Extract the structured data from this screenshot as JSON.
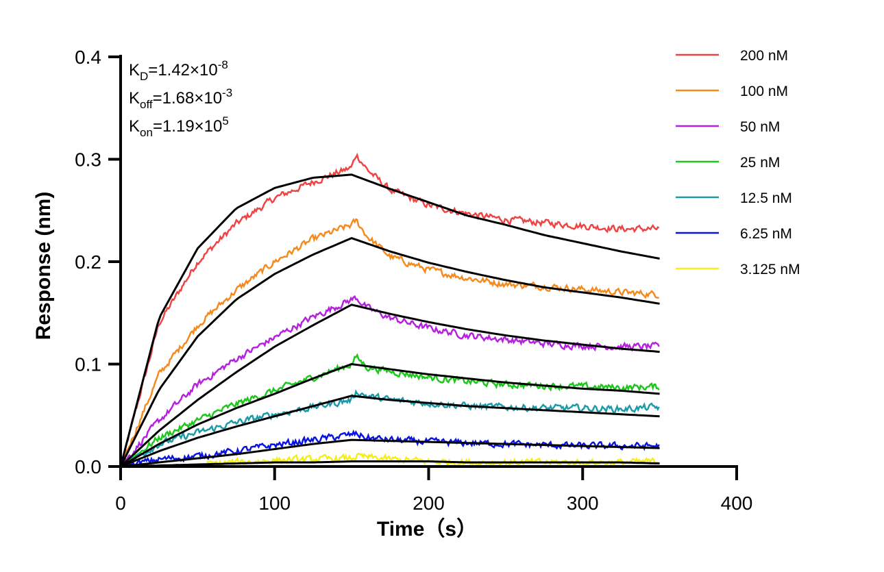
{
  "chart_data": {
    "type": "line",
    "xlabel": "Time（s）",
    "ylabel": "Response (nm)",
    "xlim": [
      0,
      400
    ],
    "ylim": [
      0,
      0.4
    ],
    "x_ticks": [
      "0",
      "100",
      "200",
      "300",
      "400"
    ],
    "y_ticks": [
      "0.0",
      "0.1",
      "0.2",
      "0.3",
      "0.4"
    ],
    "grid": false,
    "legend_position": "top-right",
    "annotations": {
      "kd": {
        "base": "K",
        "sub": "D",
        "text": "=1.42×10",
        "sup": "-8"
      },
      "koff": {
        "base": "K",
        "sub": "off",
        "text": "=1.68×10",
        "sup": "-3"
      },
      "kon": {
        "base": "K",
        "sub": "on",
        "text": "=1.19×10",
        "sup": "5"
      }
    },
    "association_end_s": 150,
    "time_end_s": 350,
    "series": [
      {
        "name": "200 nM",
        "color": "#ee4444",
        "measured": [
          [
            0,
            0
          ],
          [
            25,
            0.14
          ],
          [
            50,
            0.2
          ],
          [
            75,
            0.237
          ],
          [
            100,
            0.262
          ],
          [
            125,
            0.278
          ],
          [
            150,
            0.292
          ],
          [
            153,
            0.305
          ],
          [
            160,
            0.29
          ],
          [
            175,
            0.27
          ],
          [
            200,
            0.255
          ],
          [
            225,
            0.247
          ],
          [
            250,
            0.241
          ],
          [
            275,
            0.238
          ],
          [
            300,
            0.235
          ],
          [
            325,
            0.232
          ],
          [
            350,
            0.232
          ]
        ],
        "fit": [
          [
            0,
            0
          ],
          [
            25,
            0.145
          ],
          [
            50,
            0.213
          ],
          [
            75,
            0.252
          ],
          [
            100,
            0.272
          ],
          [
            125,
            0.282
          ],
          [
            150,
            0.285
          ],
          [
            175,
            0.271
          ],
          [
            200,
            0.258
          ],
          [
            225,
            0.245
          ],
          [
            250,
            0.236
          ],
          [
            275,
            0.226
          ],
          [
            300,
            0.218
          ],
          [
            325,
            0.21
          ],
          [
            350,
            0.203
          ]
        ]
      },
      {
        "name": "100 nM",
        "color": "#f58a1f",
        "measured": [
          [
            0,
            0
          ],
          [
            25,
            0.09
          ],
          [
            50,
            0.138
          ],
          [
            75,
            0.172
          ],
          [
            100,
            0.2
          ],
          [
            125,
            0.222
          ],
          [
            150,
            0.236
          ],
          [
            153,
            0.24
          ],
          [
            160,
            0.225
          ],
          [
            175,
            0.205
          ],
          [
            200,
            0.192
          ],
          [
            225,
            0.184
          ],
          [
            250,
            0.178
          ],
          [
            275,
            0.176
          ],
          [
            300,
            0.173
          ],
          [
            325,
            0.17
          ],
          [
            350,
            0.168
          ]
        ],
        "fit": [
          [
            0,
            0
          ],
          [
            25,
            0.075
          ],
          [
            50,
            0.127
          ],
          [
            75,
            0.163
          ],
          [
            100,
            0.188
          ],
          [
            125,
            0.207
          ],
          [
            150,
            0.223
          ],
          [
            175,
            0.21
          ],
          [
            200,
            0.199
          ],
          [
            225,
            0.19
          ],
          [
            250,
            0.182
          ],
          [
            275,
            0.175
          ],
          [
            300,
            0.17
          ],
          [
            325,
            0.165
          ],
          [
            350,
            0.159
          ]
        ]
      },
      {
        "name": "50 nM",
        "color": "#b521de",
        "measured": [
          [
            0,
            0
          ],
          [
            25,
            0.045
          ],
          [
            50,
            0.08
          ],
          [
            75,
            0.105
          ],
          [
            100,
            0.126
          ],
          [
            125,
            0.146
          ],
          [
            150,
            0.163
          ],
          [
            153,
            0.165
          ],
          [
            160,
            0.155
          ],
          [
            175,
            0.145
          ],
          [
            200,
            0.135
          ],
          [
            225,
            0.128
          ],
          [
            250,
            0.124
          ],
          [
            275,
            0.12
          ],
          [
            300,
            0.118
          ],
          [
            325,
            0.117
          ],
          [
            350,
            0.117
          ]
        ],
        "fit": [
          [
            0,
            0
          ],
          [
            25,
            0.035
          ],
          [
            50,
            0.065
          ],
          [
            75,
            0.092
          ],
          [
            100,
            0.117
          ],
          [
            125,
            0.138
          ],
          [
            150,
            0.158
          ],
          [
            175,
            0.149
          ],
          [
            200,
            0.141
          ],
          [
            225,
            0.134
          ],
          [
            250,
            0.128
          ],
          [
            275,
            0.123
          ],
          [
            300,
            0.119
          ],
          [
            325,
            0.115
          ],
          [
            350,
            0.112
          ]
        ]
      },
      {
        "name": "25 nM",
        "color": "#1ec61e",
        "measured": [
          [
            0,
            0
          ],
          [
            25,
            0.028
          ],
          [
            50,
            0.045
          ],
          [
            75,
            0.061
          ],
          [
            100,
            0.074
          ],
          [
            125,
            0.087
          ],
          [
            150,
            0.1
          ],
          [
            153,
            0.107
          ],
          [
            160,
            0.097
          ],
          [
            175,
            0.093
          ],
          [
            200,
            0.087
          ],
          [
            225,
            0.083
          ],
          [
            250,
            0.08
          ],
          [
            275,
            0.079
          ],
          [
            300,
            0.078
          ],
          [
            325,
            0.077
          ],
          [
            350,
            0.078
          ]
        ],
        "fit": [
          [
            0,
            0
          ],
          [
            25,
            0.022
          ],
          [
            50,
            0.041
          ],
          [
            75,
            0.057
          ],
          [
            100,
            0.071
          ],
          [
            125,
            0.086
          ],
          [
            150,
            0.1
          ],
          [
            175,
            0.095
          ],
          [
            200,
            0.09
          ],
          [
            225,
            0.086
          ],
          [
            250,
            0.082
          ],
          [
            275,
            0.079
          ],
          [
            300,
            0.076
          ],
          [
            325,
            0.074
          ],
          [
            350,
            0.071
          ]
        ]
      },
      {
        "name": "12.5 nM",
        "color": "#1c9aa8",
        "measured": [
          [
            0,
            0
          ],
          [
            25,
            0.022
          ],
          [
            50,
            0.033
          ],
          [
            75,
            0.043
          ],
          [
            100,
            0.051
          ],
          [
            125,
            0.058
          ],
          [
            150,
            0.065
          ],
          [
            153,
            0.073
          ],
          [
            160,
            0.069
          ],
          [
            175,
            0.065
          ],
          [
            200,
            0.062
          ],
          [
            225,
            0.059
          ],
          [
            250,
            0.058
          ],
          [
            275,
            0.057
          ],
          [
            300,
            0.057
          ],
          [
            325,
            0.056
          ],
          [
            350,
            0.058
          ]
        ],
        "fit": [
          [
            0,
            0
          ],
          [
            25,
            0.015
          ],
          [
            50,
            0.028
          ],
          [
            75,
            0.039
          ],
          [
            100,
            0.049
          ],
          [
            125,
            0.059
          ],
          [
            150,
            0.069
          ],
          [
            175,
            0.065
          ],
          [
            200,
            0.062
          ],
          [
            225,
            0.059
          ],
          [
            250,
            0.057
          ],
          [
            275,
            0.055
          ],
          [
            300,
            0.053
          ],
          [
            325,
            0.051
          ],
          [
            350,
            0.049
          ]
        ]
      },
      {
        "name": "6.25 nM",
        "color": "#0a14e0",
        "measured": [
          [
            0,
            0
          ],
          [
            25,
            0.007
          ],
          [
            50,
            0.01
          ],
          [
            75,
            0.015
          ],
          [
            100,
            0.021
          ],
          [
            125,
            0.026
          ],
          [
            150,
            0.031
          ],
          [
            153,
            0.032
          ],
          [
            160,
            0.028
          ],
          [
            175,
            0.026
          ],
          [
            200,
            0.024
          ],
          [
            225,
            0.023
          ],
          [
            250,
            0.022
          ],
          [
            275,
            0.021
          ],
          [
            300,
            0.02
          ],
          [
            325,
            0.02
          ],
          [
            350,
            0.02
          ]
        ],
        "fit": [
          [
            0,
            0
          ],
          [
            25,
            0.004
          ],
          [
            50,
            0.008
          ],
          [
            75,
            0.012
          ],
          [
            100,
            0.017
          ],
          [
            125,
            0.022
          ],
          [
            150,
            0.026
          ],
          [
            175,
            0.025
          ],
          [
            200,
            0.024
          ],
          [
            225,
            0.023
          ],
          [
            250,
            0.022
          ],
          [
            275,
            0.021
          ],
          [
            300,
            0.02
          ],
          [
            325,
            0.019
          ],
          [
            350,
            0.018
          ]
        ]
      },
      {
        "name": "3.125 nM",
        "color": "#f5ee1a",
        "measured": [
          [
            55,
            0.002
          ],
          [
            75,
            0.004
          ],
          [
            100,
            0.006
          ],
          [
            125,
            0.007
          ],
          [
            150,
            0.008
          ],
          [
            153,
            0.01
          ],
          [
            160,
            0.009
          ],
          [
            175,
            0.007
          ],
          [
            200,
            0.005
          ],
          [
            225,
            0.004
          ],
          [
            250,
            0.004
          ],
          [
            275,
            0.004
          ],
          [
            300,
            0.004
          ],
          [
            325,
            0.004
          ],
          [
            350,
            0.005
          ]
        ],
        "fit": [
          [
            0,
            0
          ],
          [
            25,
            0.001
          ],
          [
            50,
            0.002
          ],
          [
            75,
            0.003
          ],
          [
            100,
            0.004
          ],
          [
            125,
            0.004
          ],
          [
            150,
            0.005
          ],
          [
            175,
            0.005
          ],
          [
            200,
            0.005
          ],
          [
            225,
            0.004
          ],
          [
            250,
            0.004
          ],
          [
            275,
            0.004
          ],
          [
            300,
            0.004
          ],
          [
            325,
            0.004
          ],
          [
            350,
            0.003
          ]
        ]
      }
    ]
  }
}
